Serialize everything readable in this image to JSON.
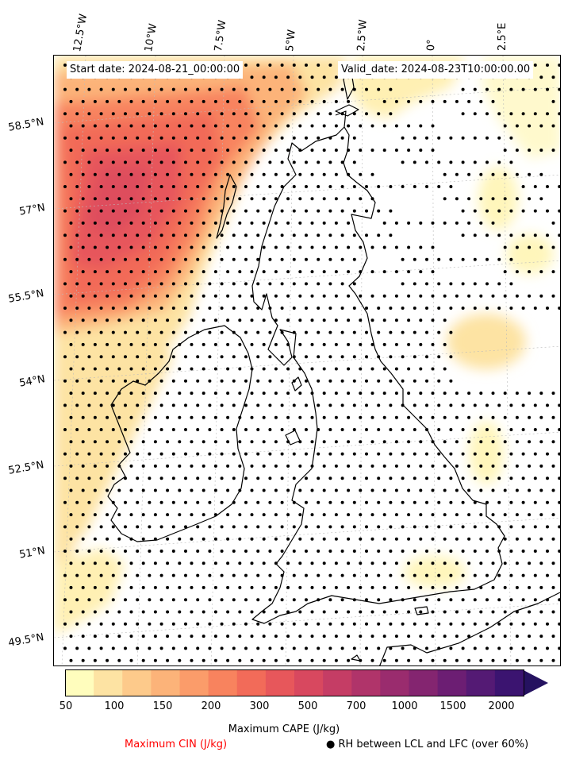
{
  "map": {
    "start_date": "Start date: 2024-08-21_00:00:00",
    "valid_date": "Valid_date: 2024-08-23T10:00:00.00",
    "lon_labels": [
      "12.5°W",
      "10°W",
      "7.5°W",
      "5°W",
      "2.5°W",
      "0°",
      "2.5°E"
    ],
    "lat_labels": [
      "58.5°N",
      "57°N",
      "55.5°N",
      "54°N",
      "52.5°N",
      "51°N",
      "49.5°N"
    ]
  },
  "colorbar": {
    "ticks": [
      "50",
      "100",
      "150",
      "200",
      "300",
      "500",
      "700",
      "1000",
      "1500",
      "2000"
    ],
    "colors": [
      "#fffdbd",
      "#fde3a3",
      "#fdca8b",
      "#fcb379",
      "#fb9c6a",
      "#f8835e",
      "#f26b59",
      "#e7575b",
      "#d8485f",
      "#c53d65",
      "#b0346a",
      "#9a2c6e",
      "#842570",
      "#6c1e73",
      "#541a74",
      "#3b1470",
      "#251260"
    ],
    "title": "Maximum CAPE (J/kg)"
  },
  "legend": {
    "cin": "Maximum CIN (J/kg)",
    "rh": "● RH between LCL and LFC (over 60%)"
  }
}
